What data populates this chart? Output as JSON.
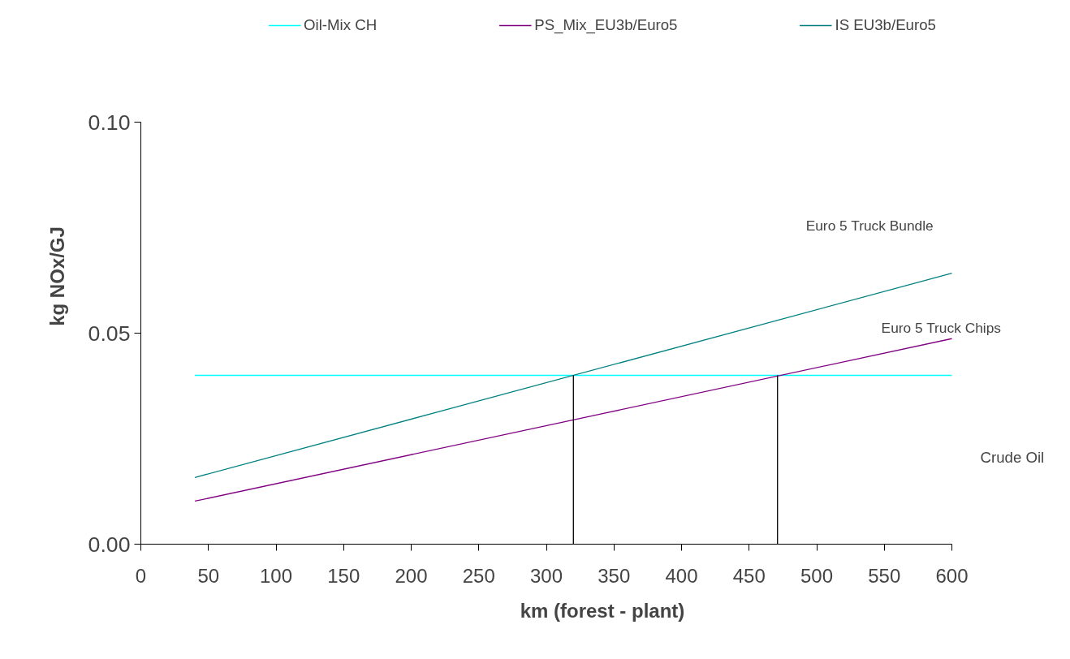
{
  "chart_data": {
    "type": "line",
    "xlabel": "km (forest - plant)",
    "ylabel": "kg NOx/GJ",
    "xlim": [
      0,
      600
    ],
    "xticks": [
      0,
      50,
      100,
      150,
      200,
      250,
      300,
      350,
      400,
      450,
      500,
      550,
      600
    ],
    "ylim": [
      0,
      0.1
    ],
    "yticks": [
      {
        "value": 0,
        "label": "0.00"
      },
      {
        "value": 0.05,
        "label": "0.05"
      },
      {
        "value": 0.1,
        "label": "0.10"
      }
    ],
    "grid": false,
    "legend": "top",
    "marker": "none",
    "line_style": "solid",
    "series": [
      {
        "name": "Oil-Mix CH",
        "color": "#00ffff",
        "x": [
          40,
          600
        ],
        "values": [
          0.04,
          0.04
        ]
      },
      {
        "name": "PS_Mix_EU3b/Euro5",
        "color": "#800080",
        "x": [
          40,
          600
        ],
        "values": [
          0.0102,
          0.0487
        ]
      },
      {
        "name": "IS EU3b/Euro5",
        "color": "#008080",
        "x": [
          40,
          600
        ],
        "values": [
          0.0158,
          0.0642
        ]
      },
      {
        "color": "#000000",
        "x": [
          320,
          320
        ],
        "values": [
          0,
          0.04
        ]
      },
      {
        "color": "#000000",
        "x": [
          471,
          471
        ],
        "values": [
          0,
          0.04
        ]
      }
    ],
    "annotations": [
      "Euro 5 Truck Bundle",
      "Euro 5 Truck Chips",
      "Crude Oil"
    ]
  }
}
